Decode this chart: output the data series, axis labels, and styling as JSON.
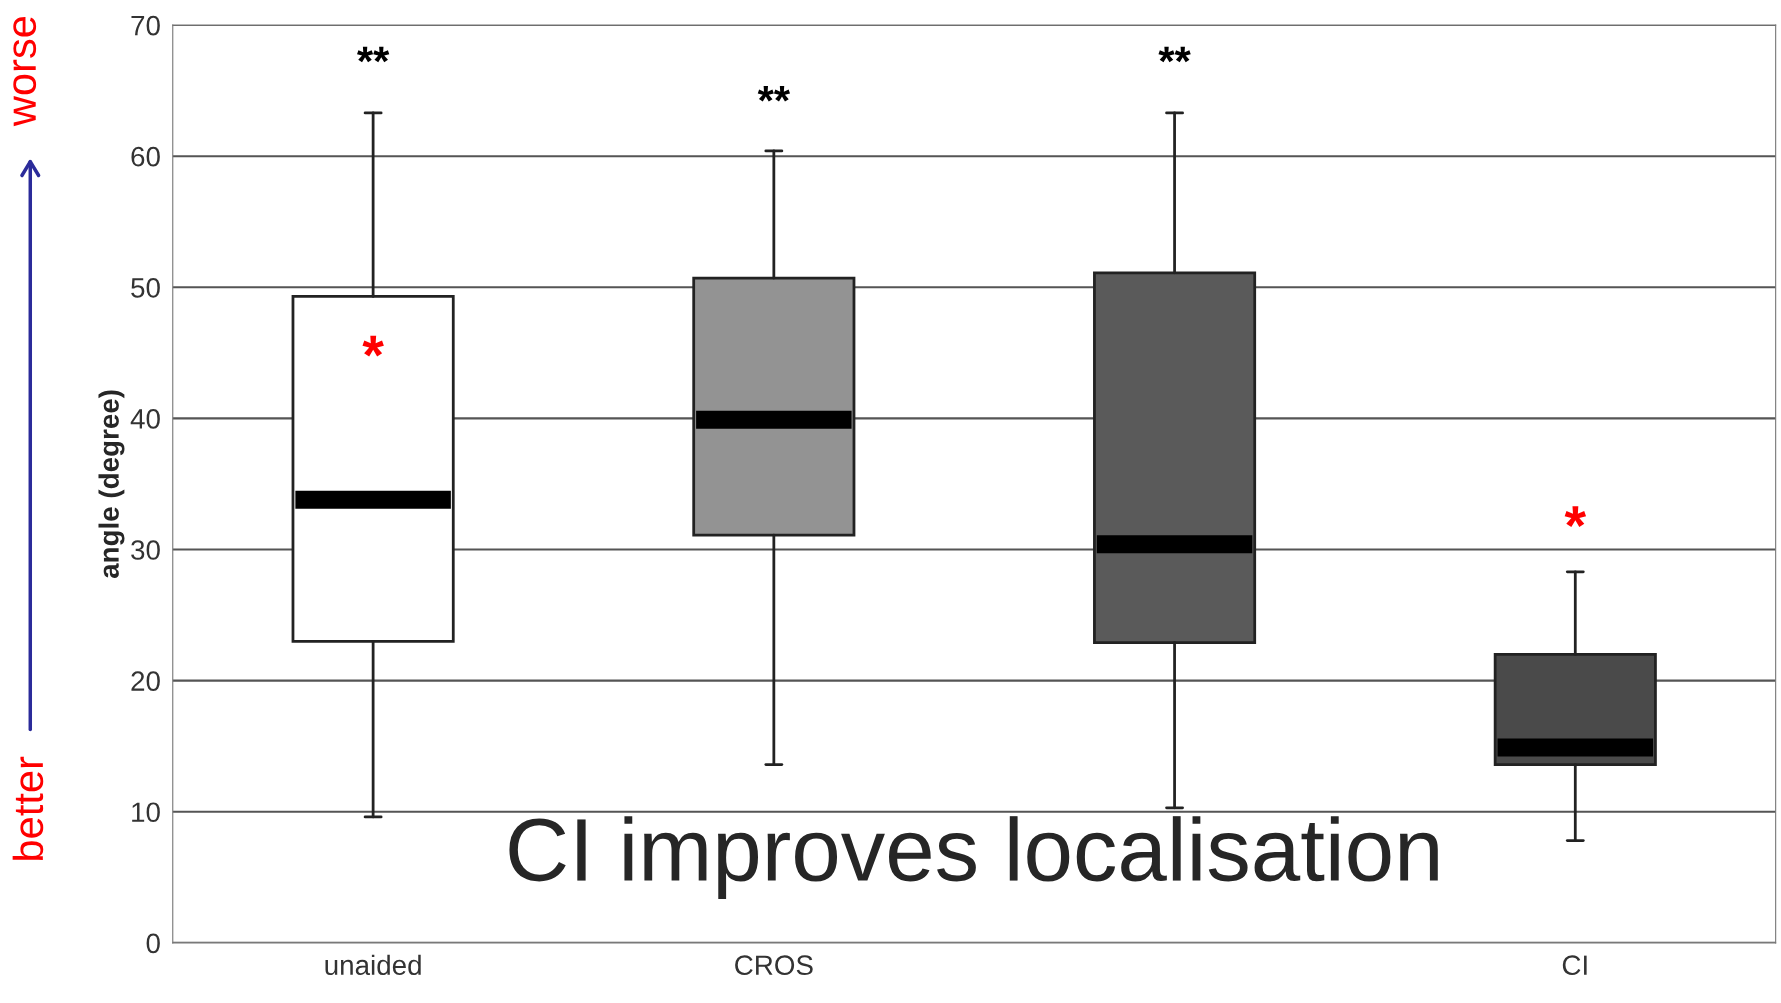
{
  "chart_data": {
    "type": "box",
    "ylabel": "angle (degree)",
    "categories": [
      "unaided",
      "CROS",
      null,
      "CI"
    ],
    "colors": [
      "#ffffff",
      "#939393",
      "#5a5a5a",
      "#4a4a4a"
    ],
    "boxes": [
      {
        "low": 9.6,
        "q1": 23.0,
        "median": 33.8,
        "q3": 49.3,
        "high": 63.3
      },
      {
        "low": 13.6,
        "q1": 31.1,
        "median": 39.9,
        "q3": 50.7,
        "high": 60.4
      },
      {
        "low": 10.3,
        "q1": 22.9,
        "median": 30.4,
        "q3": 51.1,
        "high": 63.3
      },
      {
        "low": 7.8,
        "q1": 13.6,
        "median": 14.9,
        "q3": 22.0,
        "high": 28.3
      }
    ],
    "ylim": [
      0,
      70
    ],
    "yticks": [
      0,
      10,
      20,
      30,
      40,
      50,
      60,
      70
    ],
    "grid": "y",
    "annotations": [
      "**",
      "**",
      "**",
      "*",
      "*",
      "CI improves localisation",
      "worse",
      "better"
    ]
  }
}
